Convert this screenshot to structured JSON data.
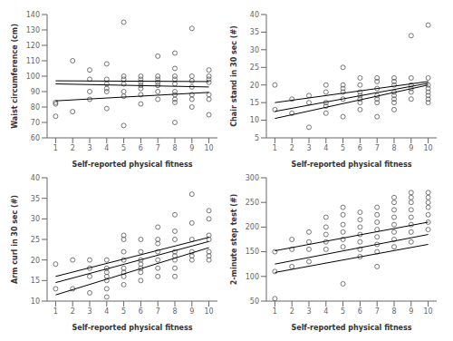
{
  "chart_data": [
    {
      "type": "scatter",
      "xlabel": "Self-reported physical fitness",
      "ylabel": "Waist circumference (cm)",
      "xlim": [
        0.5,
        10.5
      ],
      "ylim": [
        60,
        140
      ],
      "xticks": [
        1,
        2,
        3,
        4,
        5,
        6,
        7,
        8,
        9,
        10
      ],
      "yticks": [
        60,
        70,
        80,
        90,
        100,
        110,
        120,
        130,
        140
      ],
      "series": [
        {
          "type": "scatter",
          "color": "#555555",
          "marker": "open_circle",
          "x": [
            1,
            1,
            1,
            2,
            2,
            3,
            3,
            3,
            3,
            4,
            4,
            4,
            4,
            4,
            4,
            5,
            5,
            5,
            5,
            5,
            5,
            5,
            6,
            6,
            6,
            6,
            6,
            6,
            6,
            7,
            7,
            7,
            7,
            7,
            7,
            7,
            8,
            8,
            8,
            8,
            8,
            8,
            8,
            8,
            8,
            8,
            9,
            9,
            9,
            9,
            9,
            9,
            9,
            10,
            10,
            10,
            10,
            10,
            10,
            10
          ],
          "values": [
            83,
            74,
            82,
            110,
            77,
            104,
            98,
            90,
            85,
            108,
            98,
            95,
            92,
            90,
            79,
            135,
            100,
            98,
            95,
            90,
            87,
            68,
            100,
            98,
            96,
            94,
            92,
            88,
            82,
            113,
            100,
            98,
            96,
            94,
            90,
            85,
            115,
            105,
            100,
            98,
            95,
            90,
            88,
            85,
            83,
            70,
            131,
            100,
            97,
            93,
            88,
            85,
            80,
            104,
            100,
            98,
            96,
            88,
            85,
            75
          ]
        },
        {
          "type": "line",
          "color": "black",
          "x": [
            1,
            10
          ],
          "values": [
            95.0,
            93.0
          ]
        },
        {
          "type": "line",
          "color": "black",
          "x": [
            1,
            10
          ],
          "values": [
            97.0,
            96.5
          ]
        },
        {
          "type": "line",
          "color": "black",
          "x": [
            1,
            10
          ],
          "values": [
            84.0,
            89.5
          ]
        }
      ]
    },
    {
      "type": "scatter",
      "xlabel": "Self-reported physical fitness",
      "ylabel": "Chair stand in 30 sec (#)",
      "xlim": [
        0.5,
        10.5
      ],
      "ylim": [
        5,
        40
      ],
      "xticks": [
        1,
        2,
        3,
        4,
        5,
        6,
        7,
        8,
        9,
        10
      ],
      "yticks": [
        5,
        10,
        15,
        20,
        25,
        30,
        35,
        40
      ],
      "series": [
        {
          "type": "scatter",
          "color": "#555555",
          "marker": "open_circle",
          "x": [
            1,
            1,
            2,
            2,
            3,
            3,
            3,
            4,
            4,
            4,
            4,
            4,
            5,
            5,
            5,
            5,
            5,
            5,
            6,
            6,
            6,
            6,
            6,
            6,
            6,
            7,
            7,
            7,
            7,
            7,
            7,
            7,
            8,
            8,
            8,
            8,
            8,
            8,
            8,
            8,
            9,
            9,
            9,
            9,
            9,
            9,
            10,
            10,
            10,
            10,
            10,
            10,
            10,
            10
          ],
          "values": [
            20,
            13,
            16,
            12,
            17,
            15,
            8,
            20,
            18,
            15,
            14,
            12,
            25,
            20,
            19,
            18,
            16,
            11,
            22,
            20,
            18,
            17,
            16,
            15,
            13,
            22,
            21,
            19,
            17,
            16,
            15,
            11,
            22,
            21,
            20,
            18,
            17,
            16,
            15,
            13,
            34,
            22,
            20,
            19,
            18,
            16,
            37,
            22,
            20,
            19,
            18,
            17,
            16,
            15
          ]
        },
        {
          "type": "line",
          "color": "black",
          "x": [
            1,
            10
          ],
          "values": [
            12.5,
            20.5
          ]
        },
        {
          "type": "line",
          "color": "black",
          "x": [
            1,
            10
          ],
          "values": [
            15.0,
            21.0
          ]
        },
        {
          "type": "line",
          "color": "black",
          "x": [
            1,
            10
          ],
          "values": [
            10.5,
            20.0
          ]
        }
      ]
    },
    {
      "type": "scatter",
      "xlabel": "Self-reported physical fitness",
      "ylabel": "Arm curl in 30 sec (#)",
      "xlim": [
        0.5,
        10.5
      ],
      "ylim": [
        10,
        40
      ],
      "xticks": [
        1,
        2,
        3,
        4,
        5,
        6,
        7,
        8,
        9,
        10
      ],
      "yticks": [
        10,
        15,
        20,
        25,
        30,
        35,
        40
      ],
      "series": [
        {
          "type": "scatter",
          "color": "#555555",
          "marker": "open_circle",
          "x": [
            1,
            1,
            2,
            2,
            3,
            3,
            3,
            3,
            4,
            4,
            4,
            4,
            4,
            4,
            4,
            5,
            5,
            5,
            5,
            5,
            5,
            5,
            5,
            6,
            6,
            6,
            6,
            6,
            6,
            6,
            7,
            7,
            7,
            7,
            7,
            7,
            7,
            8,
            8,
            8,
            8,
            8,
            8,
            8,
            8,
            9,
            9,
            9,
            9,
            9,
            9,
            10,
            10,
            10,
            10,
            10,
            10,
            10
          ],
          "values": [
            19,
            13,
            20,
            13,
            20,
            18,
            16,
            12,
            20,
            18,
            17,
            16,
            15,
            13,
            11,
            26,
            25,
            22,
            20,
            18,
            17,
            16,
            14,
            25,
            22,
            20,
            19,
            18,
            17,
            15,
            28,
            25,
            24,
            22,
            20,
            18,
            16,
            31,
            27,
            25,
            22,
            21,
            20,
            18,
            16,
            36,
            29,
            25,
            22,
            21,
            20,
            32,
            30,
            26,
            25,
            22,
            21,
            20
          ]
        },
        {
          "type": "line",
          "color": "black",
          "x": [
            1,
            10
          ],
          "values": [
            14.5,
            24.5
          ]
        },
        {
          "type": "line",
          "color": "black",
          "x": [
            1,
            10
          ],
          "values": [
            16.0,
            25.5
          ]
        },
        {
          "type": "line",
          "color": "black",
          "x": [
            1,
            10
          ],
          "values": [
            11.5,
            23.0
          ]
        }
      ]
    },
    {
      "type": "scatter",
      "xlabel": "Self-reported physical fitness",
      "ylabel": "2-minute step test (#)",
      "xlim": [
        0.5,
        10.5
      ],
      "ylim": [
        50,
        300
      ],
      "xticks": [
        1,
        2,
        3,
        4,
        5,
        6,
        7,
        8,
        9,
        10
      ],
      "yticks": [
        50,
        100,
        150,
        200,
        250,
        300
      ],
      "series": [
        {
          "type": "scatter",
          "color": "#555555",
          "marker": "open_circle",
          "x": [
            1,
            1,
            1,
            2,
            2,
            2,
            3,
            3,
            3,
            3,
            4,
            4,
            4,
            4,
            4,
            5,
            5,
            5,
            5,
            5,
            5,
            5,
            6,
            6,
            6,
            6,
            6,
            6,
            6,
            7,
            7,
            7,
            7,
            7,
            7,
            7,
            7,
            8,
            8,
            8,
            8,
            8,
            8,
            8,
            8,
            9,
            9,
            9,
            9,
            9,
            9,
            9,
            9,
            10,
            10,
            10,
            10,
            10,
            10,
            10
          ],
          "values": [
            150,
            110,
            55,
            175,
            155,
            120,
            190,
            170,
            155,
            130,
            220,
            200,
            185,
            170,
            155,
            240,
            225,
            205,
            190,
            175,
            160,
            85,
            230,
            215,
            200,
            185,
            170,
            155,
            140,
            240,
            225,
            210,
            195,
            180,
            165,
            150,
            120,
            260,
            250,
            235,
            220,
            205,
            190,
            175,
            160,
            270,
            260,
            250,
            235,
            220,
            205,
            190,
            170,
            270,
            260,
            250,
            240,
            225,
            210,
            195
          ]
        },
        {
          "type": "line",
          "color": "black",
          "x": [
            1,
            10
          ],
          "values": [
            125.0,
            185.0
          ]
        },
        {
          "type": "line",
          "color": "black",
          "x": [
            1,
            10
          ],
          "values": [
            152.0,
            210.0
          ]
        },
        {
          "type": "line",
          "color": "black",
          "x": [
            1,
            10
          ],
          "values": [
            108.0,
            165.0
          ]
        }
      ]
    }
  ]
}
